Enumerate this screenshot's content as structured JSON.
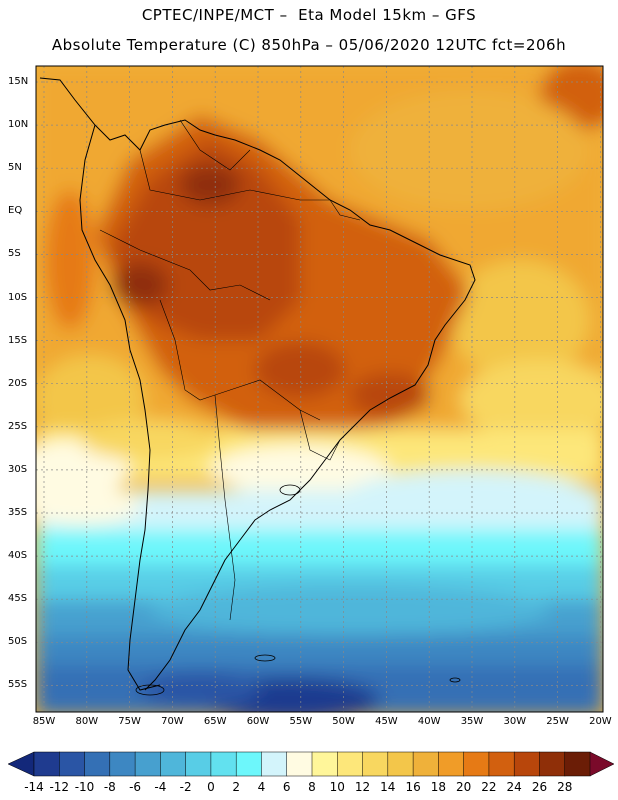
{
  "title_line1": "CPTEC/INPE/MCT –  Eta Model 15km – GFS",
  "title_line2": "Absolute Temperature (C) 850hPa – 05/06/2020 12UTC fct=206h",
  "lat_labels": [
    "15N",
    "10N",
    "5N",
    "EQ",
    "5S",
    "10S",
    "15S",
    "20S",
    "25S",
    "30S",
    "35S",
    "40S",
    "45S",
    "50S",
    "55S"
  ],
  "lon_labels": [
    "85W",
    "80W",
    "75W",
    "70W",
    "65W",
    "60W",
    "55W",
    "50W",
    "45W",
    "40W",
    "35W",
    "30W",
    "25W",
    "20W"
  ],
  "colorbar": {
    "labels": [
      "-14",
      "-12",
      "-10",
      "-8",
      "-6",
      "-4",
      "-2",
      "0",
      "2",
      "4",
      "6",
      "8",
      "10",
      "12",
      "14",
      "16",
      "18",
      "20",
      "22",
      "24",
      "26",
      "28"
    ],
    "colors": [
      "#1f3b8f",
      "#2a55a5",
      "#3470b5",
      "#3d87c2",
      "#47a0cf",
      "#4fb6da",
      "#58cde6",
      "#62e1ef",
      "#6df7fb",
      "#d3f4fb",
      "#fffbe2",
      "#fff69a",
      "#fde77a",
      "#f8d760",
      "#f3c64a",
      "#efb13a",
      "#f09c28",
      "#e67a15",
      "#d2600f",
      "#b8460b",
      "#8f2f08",
      "#6b1d06"
    ],
    "under_color": "#13287a",
    "over_color": "#7a0a2a"
  }
}
